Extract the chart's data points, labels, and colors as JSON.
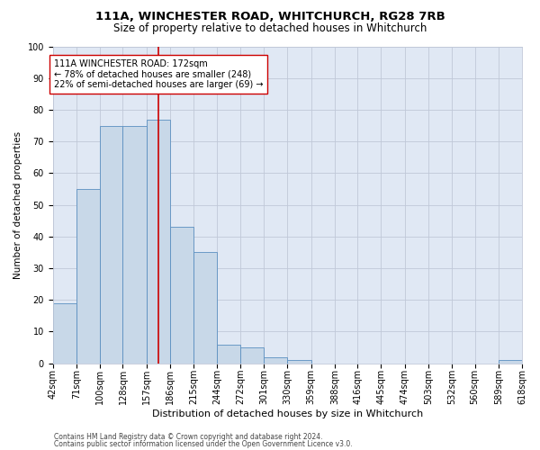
{
  "title1": "111A, WINCHESTER ROAD, WHITCHURCH, RG28 7RB",
  "title2": "Size of property relative to detached houses in Whitchurch",
  "xlabel": "Distribution of detached houses by size in Whitchurch",
  "ylabel": "Number of detached properties",
  "bins": [
    42,
    71,
    100,
    128,
    157,
    186,
    215,
    244,
    272,
    301,
    330,
    359,
    388,
    416,
    445,
    474,
    503,
    532,
    560,
    589,
    618
  ],
  "counts": [
    19,
    55,
    75,
    75,
    77,
    43,
    35,
    6,
    5,
    2,
    1,
    0,
    0,
    0,
    0,
    0,
    0,
    0,
    0,
    1
  ],
  "bar_color": "#c8d8e8",
  "bar_edge_color": "#5a8fc0",
  "grid_color": "#c0c8d8",
  "bg_color": "#e0e8f4",
  "vline_x": 172,
  "vline_color": "#cc0000",
  "annotation_text": "111A WINCHESTER ROAD: 172sqm\n← 78% of detached houses are smaller (248)\n22% of semi-detached houses are larger (69) →",
  "annotation_box_color": "#ffffff",
  "annotation_box_edge": "#cc0000",
  "ylim": [
    0,
    100
  ],
  "yticks": [
    0,
    10,
    20,
    30,
    40,
    50,
    60,
    70,
    80,
    90,
    100
  ],
  "footer1": "Contains HM Land Registry data © Crown copyright and database right 2024.",
  "footer2": "Contains public sector information licensed under the Open Government Licence v3.0.",
  "title1_fontsize": 9.5,
  "title2_fontsize": 8.5,
  "tick_fontsize": 7,
  "annot_fontsize": 7,
  "xlabel_fontsize": 8,
  "ylabel_fontsize": 7.5,
  "footer_fontsize": 5.5
}
